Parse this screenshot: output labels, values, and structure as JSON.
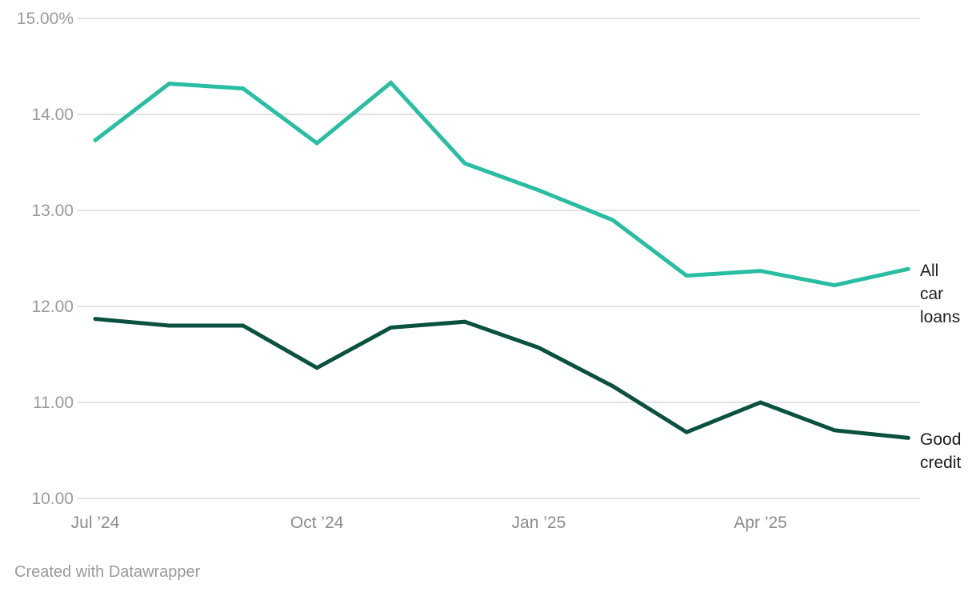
{
  "footer": {
    "credit": "Created with Datawrapper"
  },
  "colors": {
    "background": "#ffffff",
    "gridline": "#e2e2e2",
    "y_tick_text": "#9a9a9a",
    "x_tick_text": "#8b8b8b",
    "series_label_text": "#1d1d1d",
    "all_car_loans_line": "#29bea2",
    "good_credit_line": "#0a5140"
  },
  "chart_data": {
    "type": "line",
    "x": [
      "Jul ’24",
      "Aug ’24",
      "Sep ’24",
      "Oct ’24",
      "Nov ’24",
      "Dec ’24",
      "Jan ’25",
      "Feb ’25",
      "Mar ’25",
      "Apr ’25",
      "May ’25",
      "Jun ’25"
    ],
    "x_tick_labels": [
      {
        "label": "Jul ’24",
        "month_index": 0
      },
      {
        "label": "Oct ’24",
        "month_index": 3
      },
      {
        "label": "Jan ’25",
        "month_index": 6
      },
      {
        "label": "Apr ’25",
        "month_index": 9
      }
    ],
    "y_ticks": [
      {
        "value": 15,
        "label": "15.00%"
      },
      {
        "value": 14,
        "label": "14.00"
      },
      {
        "value": 13,
        "label": "13.00"
      },
      {
        "value": 12,
        "label": "12.00"
      },
      {
        "value": 11,
        "label": "11.00"
      },
      {
        "value": 10,
        "label": "10.00"
      }
    ],
    "ylim": [
      10,
      15
    ],
    "grid": "horizontal",
    "legend_position": "right-of-line-ends",
    "series": [
      {
        "name": "All car loans",
        "color": "#29bea2",
        "values": [
          13.73,
          14.32,
          14.27,
          13.7,
          14.33,
          13.49,
          13.21,
          12.9,
          12.32,
          12.37,
          12.22,
          12.39
        ]
      },
      {
        "name": "Good credit",
        "color": "#0a5140",
        "values": [
          11.87,
          11.8,
          11.8,
          11.36,
          11.78,
          11.84,
          11.57,
          11.17,
          10.69,
          11.0,
          10.71,
          10.63
        ]
      }
    ]
  }
}
